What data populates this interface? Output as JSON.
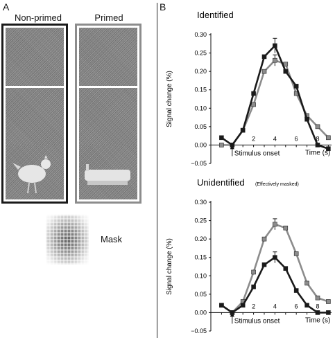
{
  "panel_a": {
    "letter": "A",
    "nonprimed_title": "Non-primed",
    "primed_title": "Primed",
    "mask_label": "Mask",
    "colors": {
      "nonprimed_frame": "#1a1a1a",
      "primed_frame": "#8c8c8c"
    }
  },
  "panel_b": {
    "letter": "B"
  },
  "chart_data": [
    {
      "type": "line",
      "title": "Identified",
      "xlabel": "Time (s)",
      "ylabel": "Signal change (%)",
      "annotation": "Stimulus onset",
      "xlim": [
        -2,
        9.3
      ],
      "ylim": [
        -0.05,
        0.3
      ],
      "xticks": [
        2,
        4,
        6,
        8
      ],
      "yticks": [
        -0.05,
        0.0,
        0.05,
        0.1,
        0.15,
        0.2,
        0.25,
        0.3
      ],
      "ytick_labels": [
        "−0.05",
        "0.00",
        "0.05",
        "0.10",
        "0.15",
        "0.20",
        "0.25",
        "0.30"
      ],
      "series": [
        {
          "color": "#1a1a1a",
          "x": [
            -1,
            0,
            1,
            2,
            3,
            4,
            5,
            6,
            7,
            8,
            9
          ],
          "y": [
            0.02,
            0.0,
            0.04,
            0.14,
            0.24,
            0.27,
            0.2,
            0.16,
            0.07,
            0.0,
            -0.01
          ],
          "error": [
            0,
            0,
            0,
            0,
            0,
            0.02,
            0,
            0,
            0,
            0,
            0
          ]
        },
        {
          "color": "#8c8c8c",
          "x": [
            -1,
            0,
            1,
            2,
            3,
            4,
            5,
            6,
            7,
            8,
            9
          ],
          "y": [
            0.0,
            0.0,
            0.04,
            0.11,
            0.2,
            0.23,
            0.22,
            0.14,
            0.08,
            0.05,
            0.02
          ],
          "error": [
            0,
            0,
            0,
            0,
            0,
            0.015,
            0,
            0,
            0,
            0,
            0
          ]
        }
      ]
    },
    {
      "type": "line",
      "title": "Unidentified",
      "subtitle": "(Effectively masked)",
      "xlabel": "Time (s)",
      "ylabel": "Signal change (%)",
      "annotation": "Stimulus onset",
      "xlim": [
        -2,
        9.3
      ],
      "ylim": [
        -0.05,
        0.3
      ],
      "xticks": [
        2,
        4,
        6,
        8
      ],
      "yticks": [
        -0.05,
        0.0,
        0.05,
        0.1,
        0.15,
        0.2,
        0.25,
        0.3
      ],
      "ytick_labels": [
        "−0.05",
        "0.00",
        "0.05",
        "0.10",
        "0.15",
        "0.20",
        "0.25",
        "0.30"
      ],
      "series": [
        {
          "color": "#1a1a1a",
          "x": [
            -1,
            0,
            1,
            2,
            3,
            4,
            5,
            6,
            7,
            8,
            9
          ],
          "y": [
            0.02,
            0.0,
            0.02,
            0.07,
            0.13,
            0.15,
            0.12,
            0.06,
            0.02,
            0.0,
            0.0
          ],
          "error": [
            0,
            0,
            0,
            0,
            0,
            0.015,
            0,
            0,
            0,
            0,
            0
          ]
        },
        {
          "color": "#8c8c8c",
          "x": [
            -1,
            0,
            1,
            2,
            3,
            4,
            5,
            6,
            7,
            8,
            9
          ],
          "y": [
            0.02,
            0.0,
            0.03,
            0.11,
            0.2,
            0.24,
            0.23,
            0.16,
            0.08,
            0.04,
            0.03
          ],
          "error": [
            0,
            0,
            0,
            0,
            0,
            0.015,
            0,
            0,
            0,
            0,
            0
          ]
        }
      ]
    }
  ]
}
